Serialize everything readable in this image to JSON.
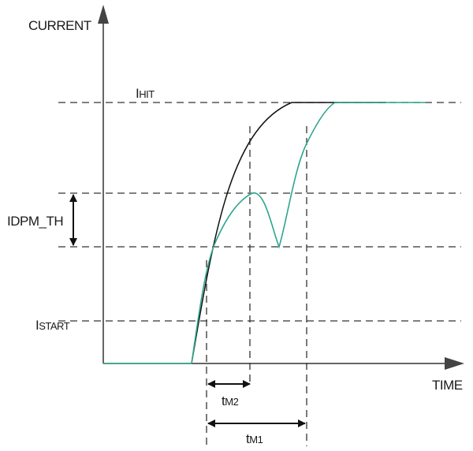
{
  "diagram": {
    "y_axis_label": "CURRENT",
    "x_axis_label": "TIME",
    "levels": {
      "hit": {
        "main": "I",
        "sub": "HIT"
      },
      "dpm_th": "IDPM_TH",
      "start": {
        "main": "I",
        "sub": "START"
      }
    },
    "intervals": {
      "tm2": {
        "main": "t",
        "sub": "M2"
      },
      "tm1": {
        "main": "t",
        "sub": "M1"
      }
    },
    "curves": [
      {
        "name": "black-curve",
        "color": "#111111"
      },
      {
        "name": "green-curve",
        "color": "#2fa58e"
      }
    ]
  }
}
